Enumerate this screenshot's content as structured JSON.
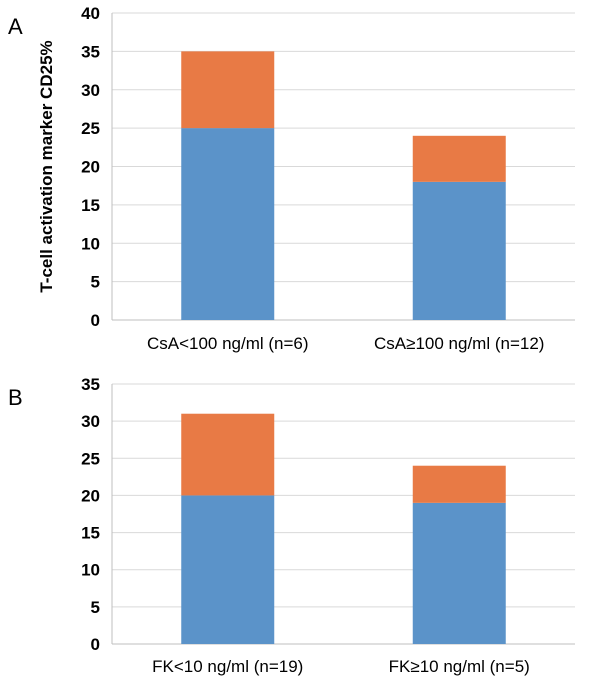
{
  "colors": {
    "series_bottom": "#5b93c9",
    "series_top": "#e87a45",
    "grid": "#d9d9d9",
    "axis": "#bfbfbf"
  },
  "chart_data": [
    {
      "type": "bar",
      "stacked": true,
      "panel": "A",
      "ylabel": "T-cell activation marker CD25%",
      "xlabel": "",
      "title": "",
      "categories": [
        "CsA<100 ng/ml (n=6)",
        "CsA≥100 ng/ml (n=12)"
      ],
      "series": [
        {
          "values": [
            25,
            18
          ]
        },
        {
          "values": [
            10,
            6
          ]
        }
      ],
      "ylim": [
        0,
        40
      ],
      "yticks": [
        0,
        5,
        10,
        15,
        20,
        25,
        30,
        35,
        40
      ],
      "grid": true,
      "legend": "none"
    },
    {
      "type": "bar",
      "stacked": true,
      "panel": "B",
      "ylabel": "",
      "xlabel": "",
      "title": "",
      "categories": [
        "FK<10 ng/ml (n=19)",
        "FK≥10 ng/ml (n=5)"
      ],
      "series": [
        {
          "values": [
            20,
            19
          ]
        },
        {
          "values": [
            11,
            5
          ]
        }
      ],
      "ylim": [
        0,
        35
      ],
      "yticks": [
        0,
        5,
        10,
        15,
        20,
        25,
        30,
        35
      ],
      "grid": true,
      "legend": "none"
    }
  ]
}
